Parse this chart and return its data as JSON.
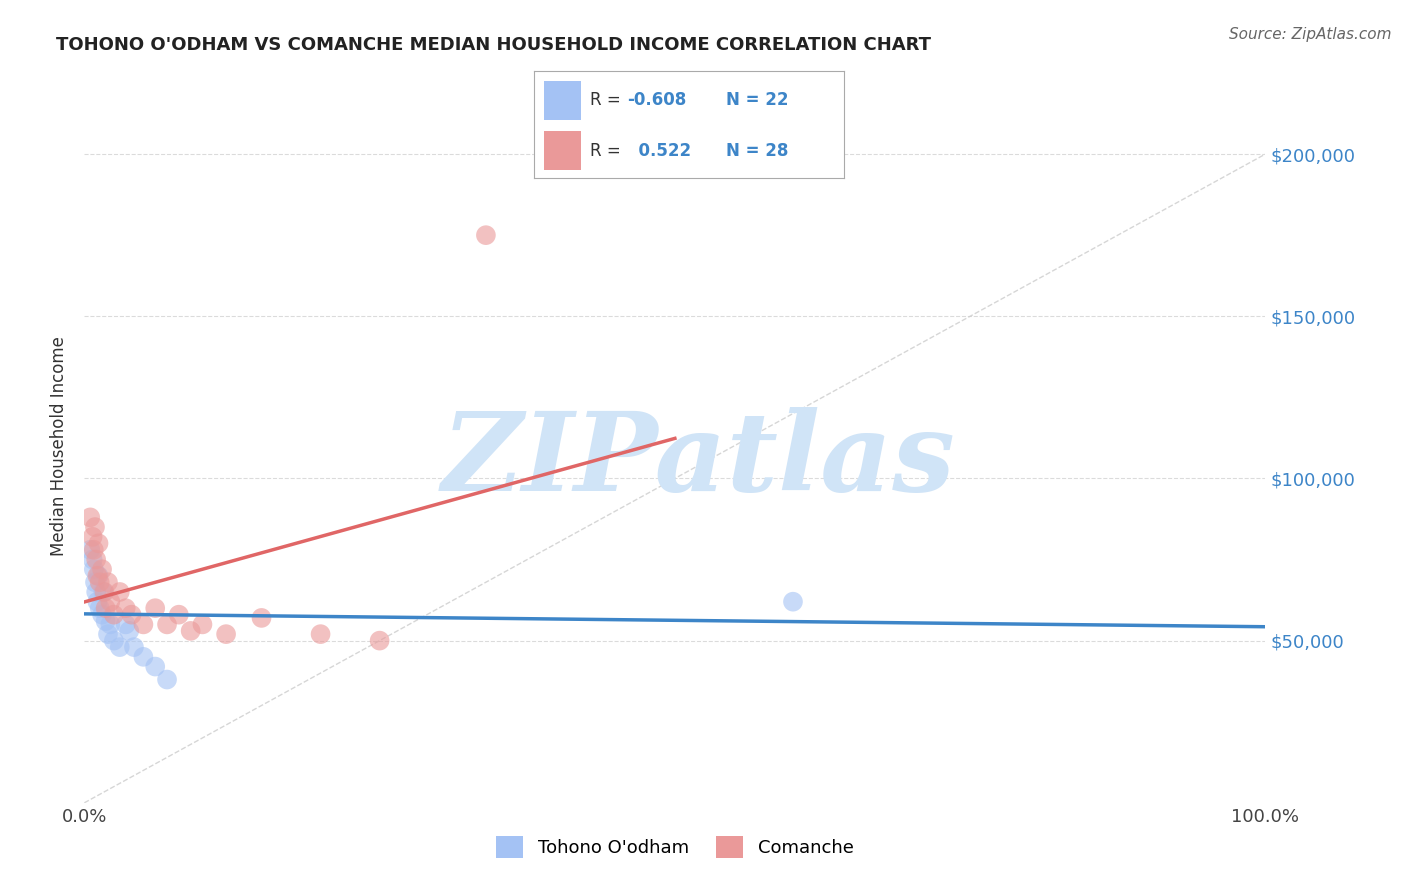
{
  "title": "TOHONO O'ODHAM VS COMANCHE MEDIAN HOUSEHOLD INCOME CORRELATION CHART",
  "source": "Source: ZipAtlas.com",
  "ylabel": "Median Household Income",
  "xlim": [
    0.0,
    1.0
  ],
  "ylim": [
    0,
    220000
  ],
  "color_blue": "#a4c2f4",
  "color_pink": "#ea9999",
  "color_blue_line": "#3d85c8",
  "color_pink_line": "#e06666",
  "color_diag": "#cccccc",
  "watermark_color": "#d0e4f7",
  "grid_color": "#cccccc",
  "tohono_points": [
    [
      0.005,
      78000
    ],
    [
      0.007,
      75000
    ],
    [
      0.008,
      72000
    ],
    [
      0.009,
      68000
    ],
    [
      0.01,
      65000
    ],
    [
      0.011,
      62000
    ],
    [
      0.012,
      70000
    ],
    [
      0.013,
      60000
    ],
    [
      0.015,
      58000
    ],
    [
      0.016,
      65000
    ],
    [
      0.018,
      56000
    ],
    [
      0.02,
      52000
    ],
    [
      0.022,
      55000
    ],
    [
      0.025,
      50000
    ],
    [
      0.03,
      48000
    ],
    [
      0.035,
      55000
    ],
    [
      0.038,
      53000
    ],
    [
      0.042,
      48000
    ],
    [
      0.05,
      45000
    ],
    [
      0.06,
      42000
    ],
    [
      0.07,
      38000
    ],
    [
      0.6,
      62000
    ]
  ],
  "comanche_points": [
    [
      0.005,
      88000
    ],
    [
      0.007,
      82000
    ],
    [
      0.008,
      78000
    ],
    [
      0.009,
      85000
    ],
    [
      0.01,
      75000
    ],
    [
      0.011,
      70000
    ],
    [
      0.012,
      80000
    ],
    [
      0.013,
      68000
    ],
    [
      0.015,
      72000
    ],
    [
      0.017,
      65000
    ],
    [
      0.018,
      60000
    ],
    [
      0.02,
      68000
    ],
    [
      0.022,
      62000
    ],
    [
      0.025,
      58000
    ],
    [
      0.03,
      65000
    ],
    [
      0.035,
      60000
    ],
    [
      0.04,
      58000
    ],
    [
      0.05,
      55000
    ],
    [
      0.06,
      60000
    ],
    [
      0.07,
      55000
    ],
    [
      0.08,
      58000
    ],
    [
      0.09,
      53000
    ],
    [
      0.1,
      55000
    ],
    [
      0.12,
      52000
    ],
    [
      0.15,
      57000
    ],
    [
      0.2,
      52000
    ],
    [
      0.25,
      50000
    ],
    [
      0.34,
      175000
    ]
  ],
  "background_color": "#ffffff"
}
